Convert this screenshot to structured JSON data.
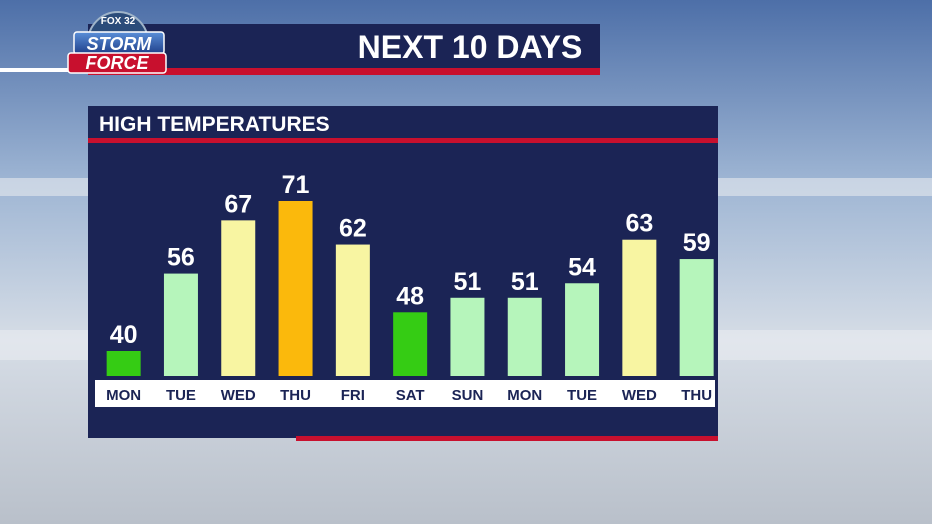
{
  "logo": {
    "station": "FOX 32",
    "line1": "STORM",
    "line2": "FORCE"
  },
  "chart_data": {
    "type": "bar",
    "title": "NEXT 10 DAYS",
    "subtitle": "HIGH TEMPERATURES",
    "categories": [
      "MON",
      "TUE",
      "WED",
      "THU",
      "FRI",
      "SAT",
      "SUN",
      "MON",
      "TUE",
      "WED",
      "THU"
    ],
    "values": [
      40,
      56,
      67,
      71,
      62,
      48,
      51,
      51,
      54,
      63,
      59
    ],
    "colors": [
      "#35cc14",
      "#b6f5bb",
      "#f8f5a2",
      "#fbb90c",
      "#f8f5a2",
      "#35cc14",
      "#b6f5bb",
      "#b6f5bb",
      "#b6f5bb",
      "#f8f5a2",
      "#b6f5bb"
    ]
  }
}
